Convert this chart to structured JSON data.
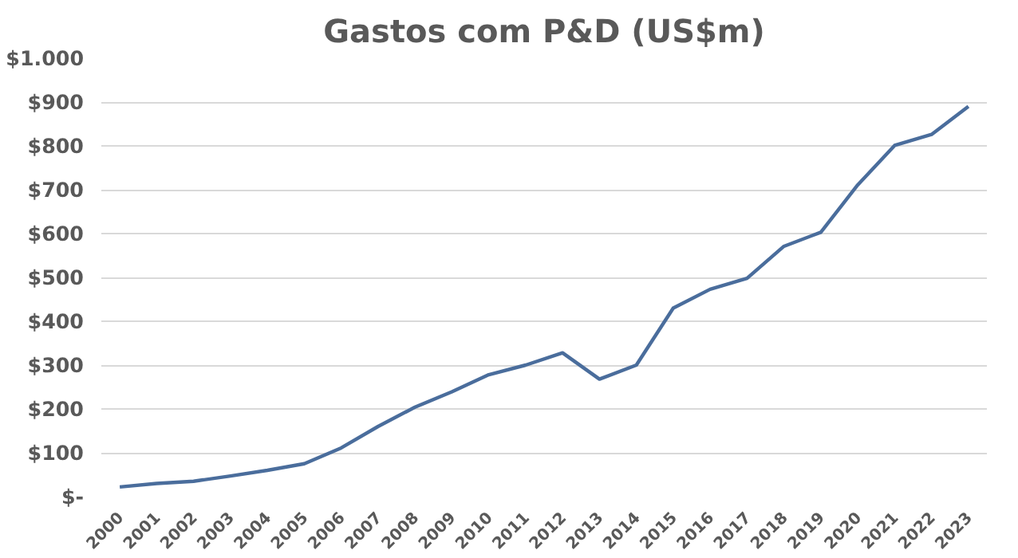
{
  "chart_data": {
    "type": "line",
    "title": "Gastos com P&D (US$m)",
    "categories": [
      "2000",
      "2001",
      "2002",
      "2003",
      "2004",
      "2005",
      "2006",
      "2007",
      "2008",
      "2009",
      "2010",
      "2011",
      "2012",
      "2013",
      "2014",
      "2015",
      "2016",
      "2017",
      "2018",
      "2019",
      "2020",
      "2021",
      "2022",
      "2023"
    ],
    "series": [
      {
        "color": "#4a6d9c",
        "values": [
          22,
          30,
          35,
          47,
          60,
          75,
          111,
          160,
          204,
          239,
          278,
          300,
          328,
          268,
          300,
          430,
          473,
          498,
          571,
          603,
          711,
          801,
          826,
          890
        ]
      }
    ],
    "ylim": [
      0,
      1000
    ],
    "yticks": [
      {
        "value": 0,
        "label": "$-"
      },
      {
        "value": 100,
        "label": "$100"
      },
      {
        "value": 200,
        "label": "$200"
      },
      {
        "value": 300,
        "label": "$300"
      },
      {
        "value": 400,
        "label": "$400"
      },
      {
        "value": 500,
        "label": "$500"
      },
      {
        "value": 600,
        "label": "$600"
      },
      {
        "value": 700,
        "label": "$700"
      },
      {
        "value": 800,
        "label": "$800"
      },
      {
        "value": 900,
        "label": "$900"
      },
      {
        "value": 1000,
        "label": "$1.000"
      }
    ],
    "grid": "y",
    "marker": "none",
    "line_style": "solid"
  }
}
